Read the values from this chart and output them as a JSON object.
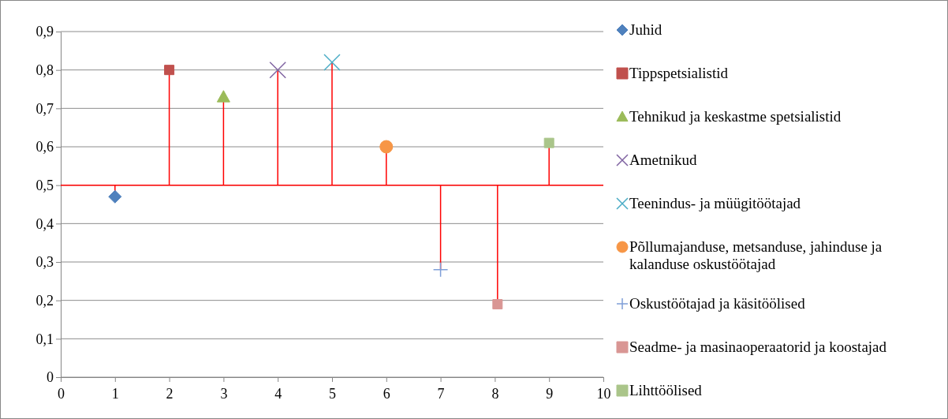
{
  "chart_data": {
    "type": "scatter",
    "xlim": [
      0,
      10
    ],
    "xticks": [
      0,
      1,
      2,
      3,
      4,
      5,
      6,
      7,
      8,
      9,
      10
    ],
    "ylim": [
      0,
      0.9
    ],
    "yticks": [
      0,
      {
        "value": 0.1,
        "label": "0,1"
      },
      {
        "value": 0.2,
        "label": "0,2"
      },
      {
        "value": 0.3,
        "label": "0,3"
      },
      {
        "value": 0.4,
        "label": "0,4"
      },
      {
        "value": 0.5,
        "label": "0,5"
      },
      {
        "value": 0.6,
        "label": "0,6"
      },
      {
        "value": 0.7,
        "label": "0,7"
      },
      {
        "value": 0.8,
        "label": "0,8"
      },
      {
        "value": 0.9,
        "label": "0,9"
      }
    ],
    "grid": "y",
    "legend": "right",
    "ref_lines": [
      {
        "axis": "y",
        "value": 0.5,
        "color": "#ff0000"
      }
    ],
    "series": [
      {
        "name": "Juhid",
        "color": "#4f81bd",
        "marker": "diamond",
        "x": [
          1
        ],
        "values": [
          0.47
        ],
        "errors": [
          [
            0.47,
            0.5
          ]
        ]
      },
      {
        "name": "Tippspetsialistid",
        "color": "#c0504d",
        "marker": "square",
        "x": [
          2
        ],
        "values": [
          0.8
        ],
        "errors": [
          [
            0.5,
            0.8
          ]
        ]
      },
      {
        "name": "Tehnikud ja keskastme spetsialistid",
        "color": "#9bbb59",
        "marker": "triangle",
        "x": [
          3
        ],
        "values": [
          0.73
        ],
        "errors": [
          [
            0.5,
            0.73
          ]
        ]
      },
      {
        "name": "Ametnikud",
        "color": "#8064a2",
        "marker": "cross",
        "x": [
          4
        ],
        "values": [
          0.8
        ],
        "errors": [
          [
            0.5,
            0.8
          ]
        ]
      },
      {
        "name": "Teenindus- ja müügitöötajad",
        "color": "#4bacc6",
        "marker": "cross",
        "x": [
          5
        ],
        "values": [
          0.82
        ],
        "errors": [
          [
            0.5,
            0.82
          ]
        ]
      },
      {
        "name": "Põllumajanduse, metsanduse, jahinduse ja kalanduse oskustöötajad",
        "color": "#f79646",
        "marker": "circle",
        "x": [
          6
        ],
        "values": [
          0.6
        ],
        "errors": [
          [
            0.5,
            0.6
          ]
        ]
      },
      {
        "name": "Oskustöötajad ja käsitöölised",
        "color": "#7f9fd8",
        "marker": "plus",
        "x": [
          7
        ],
        "values": [
          0.28
        ],
        "errors": [
          [
            0.28,
            0.5
          ]
        ]
      },
      {
        "name": "Seadme- ja masinaoperaatorid ja koostajad",
        "color": "#d99694",
        "marker": "square",
        "x": [
          8.05
        ],
        "values": [
          0.19
        ],
        "errors": [
          [
            0.19,
            0.5
          ]
        ]
      },
      {
        "name": "Lihttöölised",
        "color": "#aac58a",
        "marker": "square",
        "x": [
          9
        ],
        "values": [
          0.61
        ],
        "errors": [
          [
            0.5,
            0.61
          ]
        ]
      }
    ]
  }
}
